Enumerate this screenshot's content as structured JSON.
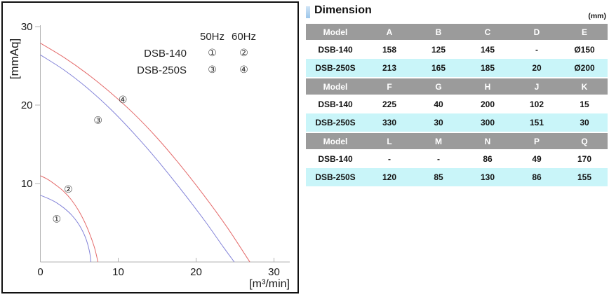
{
  "chart": {
    "y_unit": "[mmAq]",
    "x_unit": "[m³/min]",
    "legend": {
      "col_headers": [
        "50Hz",
        "60Hz"
      ],
      "rows": [
        {
          "model": "DSB-140",
          "marks": [
            "①",
            "②"
          ]
        },
        {
          "model": "DSB-250S",
          "marks": [
            "③",
            "④"
          ]
        }
      ]
    }
  },
  "chart_data": {
    "type": "line",
    "title": "",
    "xlabel": "[m³/min]",
    "ylabel": "[mmAq]",
    "xlim": [
      0,
      32
    ],
    "ylim": [
      0,
      32
    ],
    "xticks": [
      0,
      10,
      20,
      30
    ],
    "yticks": [
      10,
      20,
      30
    ],
    "grid": false,
    "legend_position": "top-right",
    "colors": {
      "red": "#e46a6a",
      "blue": "#8282d8",
      "axis": "#b3b3b3",
      "text": "#1a1a1a"
    },
    "series": [
      {
        "id": "1",
        "model": "DSB-140",
        "freq": "50Hz",
        "color_key": "blue",
        "label": "①",
        "label_at": [
          2.1,
          5.5
        ],
        "points": [
          [
            0,
            8.5
          ],
          [
            1,
            8.1
          ],
          [
            2,
            7.6
          ],
          [
            3,
            6.9
          ],
          [
            4,
            6.0
          ],
          [
            5,
            4.7
          ],
          [
            5.8,
            3.1
          ],
          [
            6.3,
            1.4
          ],
          [
            6.5,
            0
          ]
        ]
      },
      {
        "id": "2",
        "model": "DSB-140",
        "freq": "60Hz",
        "color_key": "red",
        "label": "②",
        "label_at": [
          3.6,
          9.3
        ],
        "points": [
          [
            0,
            11.0
          ],
          [
            1,
            10.5
          ],
          [
            2,
            9.8
          ],
          [
            3,
            9.0
          ],
          [
            4,
            7.9
          ],
          [
            5,
            6.4
          ],
          [
            6,
            4.4
          ],
          [
            6.9,
            2.0
          ],
          [
            7.4,
            0
          ]
        ]
      },
      {
        "id": "3",
        "model": "DSB-250S",
        "freq": "50Hz",
        "color_key": "blue",
        "label": "③",
        "label_at": [
          7.4,
          18.1
        ],
        "points": [
          [
            0,
            26.4
          ],
          [
            3,
            24.5
          ],
          [
            6,
            22.2
          ],
          [
            9,
            19.5
          ],
          [
            12,
            16.4
          ],
          [
            15,
            13.0
          ],
          [
            18,
            9.3
          ],
          [
            21,
            5.4
          ],
          [
            23.5,
            1.9
          ],
          [
            24.9,
            0
          ]
        ]
      },
      {
        "id": "4",
        "model": "DSB-250S",
        "freq": "60Hz",
        "color_key": "red",
        "label": "④",
        "label_at": [
          10.6,
          20.7
        ],
        "points": [
          [
            0,
            27.9
          ],
          [
            3,
            26.1
          ],
          [
            6,
            24.0
          ],
          [
            9,
            21.6
          ],
          [
            12,
            18.9
          ],
          [
            15,
            15.8
          ],
          [
            18,
            12.3
          ],
          [
            21,
            8.5
          ],
          [
            24,
            4.4
          ],
          [
            26.9,
            0
          ]
        ]
      }
    ]
  },
  "table": {
    "title": "Dimension",
    "unit": "(mm)",
    "header_bg": "#9b9b9b",
    "highlight_bg": "#c9f5f9",
    "accent_color": "#a9cdec",
    "blocks": [
      {
        "headers": [
          "Model",
          "A",
          "B",
          "C",
          "D",
          "E"
        ],
        "rows": [
          [
            "DSB-140",
            "158",
            "125",
            "145",
            "-",
            "Ø150"
          ],
          [
            "DSB-250S",
            "213",
            "165",
            "185",
            "20",
            "Ø200"
          ]
        ]
      },
      {
        "headers": [
          "Model",
          "F",
          "G",
          "H",
          "J",
          "K"
        ],
        "rows": [
          [
            "DSB-140",
            "225",
            "40",
            "200",
            "102",
            "15"
          ],
          [
            "DSB-250S",
            "330",
            "30",
            "300",
            "151",
            "30"
          ]
        ]
      },
      {
        "headers": [
          "Model",
          "L",
          "M",
          "N",
          "P",
          "Q"
        ],
        "rows": [
          [
            "DSB-140",
            "-",
            "-",
            "86",
            "49",
            "170"
          ],
          [
            "DSB-250S",
            "120",
            "85",
            "130",
            "86",
            "155"
          ]
        ]
      }
    ]
  }
}
